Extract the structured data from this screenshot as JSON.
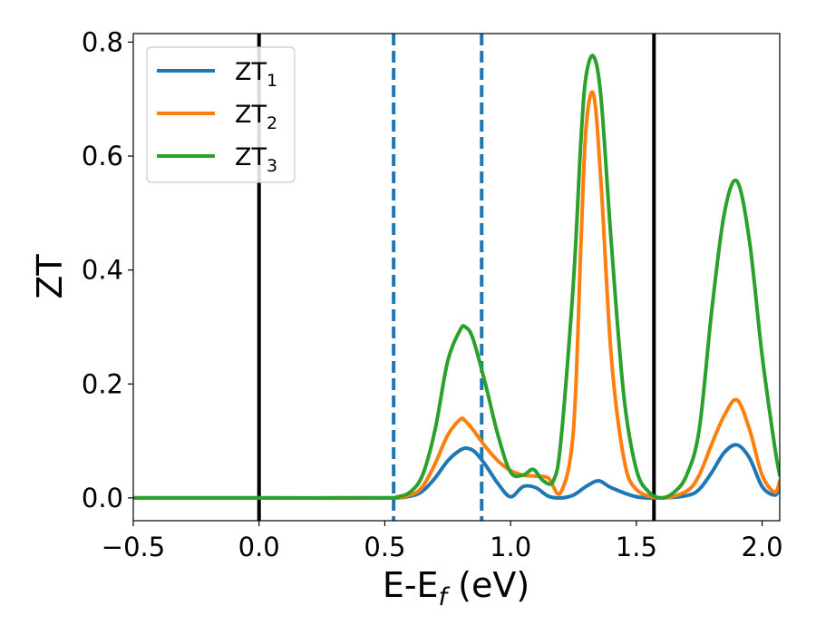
{
  "chart_data": {
    "type": "line",
    "xlabel": "E-E",
    "xlabel_sub": "f",
    "xlabel_unit": " (eV)",
    "ylabel": "ZT",
    "xlim": [
      -0.5,
      2.07
    ],
    "ylim": [
      -0.04,
      0.815
    ],
    "xticks": [
      -0.5,
      0.0,
      0.5,
      1.0,
      1.5,
      2.0
    ],
    "xtick_labels": [
      "−0.5",
      "0.0",
      "0.5",
      "1.0",
      "1.5",
      "2.0"
    ],
    "yticks": [
      0.0,
      0.2,
      0.4,
      0.6,
      0.8
    ],
    "ytick_labels": [
      "0.0",
      "0.2",
      "0.4",
      "0.6",
      "0.8"
    ],
    "vlines": [
      {
        "x": 0.0,
        "color": "#000000",
        "style": "solid"
      },
      {
        "x": 1.57,
        "color": "#000000",
        "style": "solid"
      },
      {
        "x": 0.535,
        "color": "#1f77b4",
        "style": "dashed"
      },
      {
        "x": 0.885,
        "color": "#1f77b4",
        "style": "dashed"
      }
    ],
    "legend_position": "top-left",
    "series": [
      {
        "name": "ZT",
        "sub": "1",
        "color": "#1f77b4",
        "x": [
          -0.5,
          0.0,
          0.5,
          0.6,
          0.65,
          0.7,
          0.75,
          0.8,
          0.83,
          0.86,
          0.9,
          0.95,
          1.0,
          1.05,
          1.1,
          1.15,
          1.2,
          1.25,
          1.3,
          1.35,
          1.4,
          1.5,
          1.6,
          1.7,
          1.75,
          1.8,
          1.85,
          1.9,
          1.95,
          2.0,
          2.05,
          2.07
        ],
        "y": [
          0.0,
          0.0,
          0.0,
          0.003,
          0.012,
          0.035,
          0.065,
          0.084,
          0.087,
          0.08,
          0.058,
          0.025,
          0.002,
          0.02,
          0.018,
          0.003,
          0.0,
          0.005,
          0.02,
          0.03,
          0.018,
          0.002,
          0.0,
          0.004,
          0.015,
          0.045,
          0.08,
          0.093,
          0.07,
          0.02,
          0.005,
          0.02
        ]
      },
      {
        "name": "ZT",
        "sub": "2",
        "color": "#ff7f0e",
        "x": [
          -0.5,
          0.0,
          0.5,
          0.6,
          0.65,
          0.7,
          0.75,
          0.8,
          0.82,
          0.85,
          0.9,
          0.95,
          1.0,
          1.05,
          1.1,
          1.15,
          1.2,
          1.25,
          1.28,
          1.3,
          1.33,
          1.36,
          1.4,
          1.45,
          1.5,
          1.6,
          1.7,
          1.75,
          1.8,
          1.85,
          1.9,
          1.95,
          2.0,
          2.05,
          2.07
        ],
        "y": [
          0.0,
          0.0,
          0.0,
          0.005,
          0.02,
          0.06,
          0.11,
          0.138,
          0.135,
          0.12,
          0.09,
          0.065,
          0.048,
          0.04,
          0.038,
          0.035,
          0.01,
          0.12,
          0.45,
          0.65,
          0.708,
          0.55,
          0.25,
          0.07,
          0.015,
          0.0,
          0.012,
          0.04,
          0.095,
          0.145,
          0.172,
          0.12,
          0.04,
          0.01,
          0.03
        ]
      },
      {
        "name": "ZT",
        "sub": "3",
        "color": "#2ca02c",
        "x": [
          -0.5,
          0.0,
          0.5,
          0.55,
          0.6,
          0.65,
          0.7,
          0.75,
          0.8,
          0.82,
          0.85,
          0.9,
          0.95,
          1.0,
          1.05,
          1.09,
          1.13,
          1.17,
          1.2,
          1.25,
          1.28,
          1.3,
          1.33,
          1.36,
          1.4,
          1.45,
          1.5,
          1.55,
          1.6,
          1.65,
          1.7,
          1.75,
          1.8,
          1.85,
          1.9,
          1.95,
          2.0,
          2.05,
          2.07
        ],
        "y": [
          0.0,
          0.0,
          0.0,
          0.002,
          0.01,
          0.04,
          0.12,
          0.24,
          0.295,
          0.3,
          0.28,
          0.2,
          0.11,
          0.045,
          0.04,
          0.05,
          0.03,
          0.03,
          0.1,
          0.38,
          0.63,
          0.74,
          0.775,
          0.7,
          0.45,
          0.18,
          0.05,
          0.01,
          0.0,
          0.01,
          0.04,
          0.12,
          0.33,
          0.5,
          0.556,
          0.45,
          0.25,
          0.09,
          0.04
        ]
      }
    ]
  }
}
